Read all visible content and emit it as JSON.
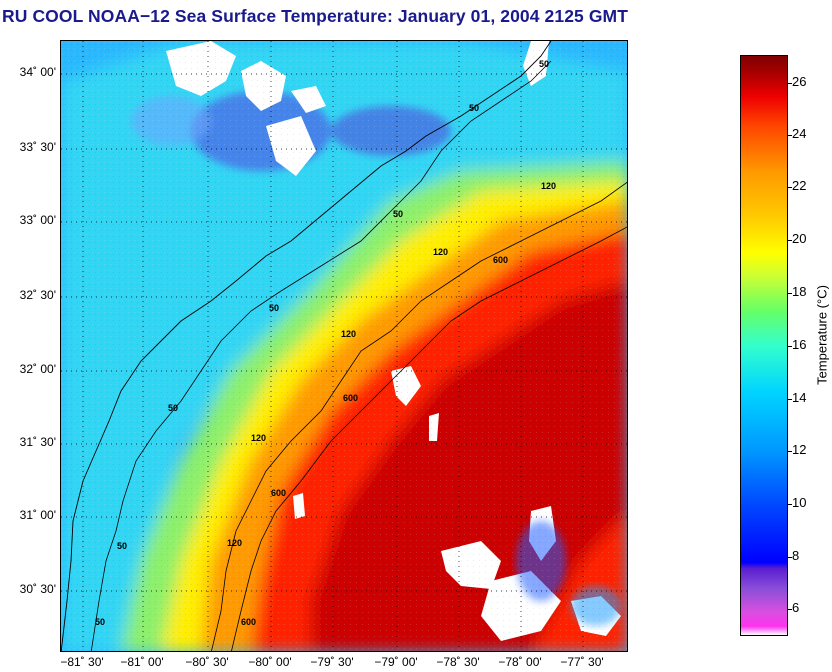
{
  "title": "RU COOL  NOAA−12  Sea Surface Temperature:  January 01, 2004 2125 GMT",
  "map": {
    "lat_labels": [
      "34˚ 00'",
      "33˚ 30'",
      "33˚ 00'",
      "32˚ 30'",
      "32˚ 00'",
      "31˚ 30'",
      "31˚ 00'",
      "30˚ 30'"
    ],
    "lon_labels": [
      "−81˚ 30'",
      "−81˚ 00'",
      "−80˚ 30'",
      "−80˚ 00'",
      "−79˚ 30'",
      "−79˚ 00'",
      "−78˚ 30'",
      "−78˚ 00'",
      "−77˚ 30'"
    ],
    "contour_labels": [
      "50",
      "50",
      "50",
      "50",
      "50",
      "50",
      "50",
      "120",
      "120",
      "120",
      "120",
      "120",
      "600",
      "600",
      "600",
      "600"
    ]
  },
  "colorbar": {
    "title": "Temperature (°C)",
    "ticks": [
      "26",
      "24",
      "22",
      "20",
      "18",
      "16",
      "14",
      "12",
      "10",
      "8",
      "6"
    ],
    "colors": {
      "min": "#ff33ee",
      "low": "#0000ff",
      "mid": "#ffff00",
      "high": "#800000"
    }
  }
}
